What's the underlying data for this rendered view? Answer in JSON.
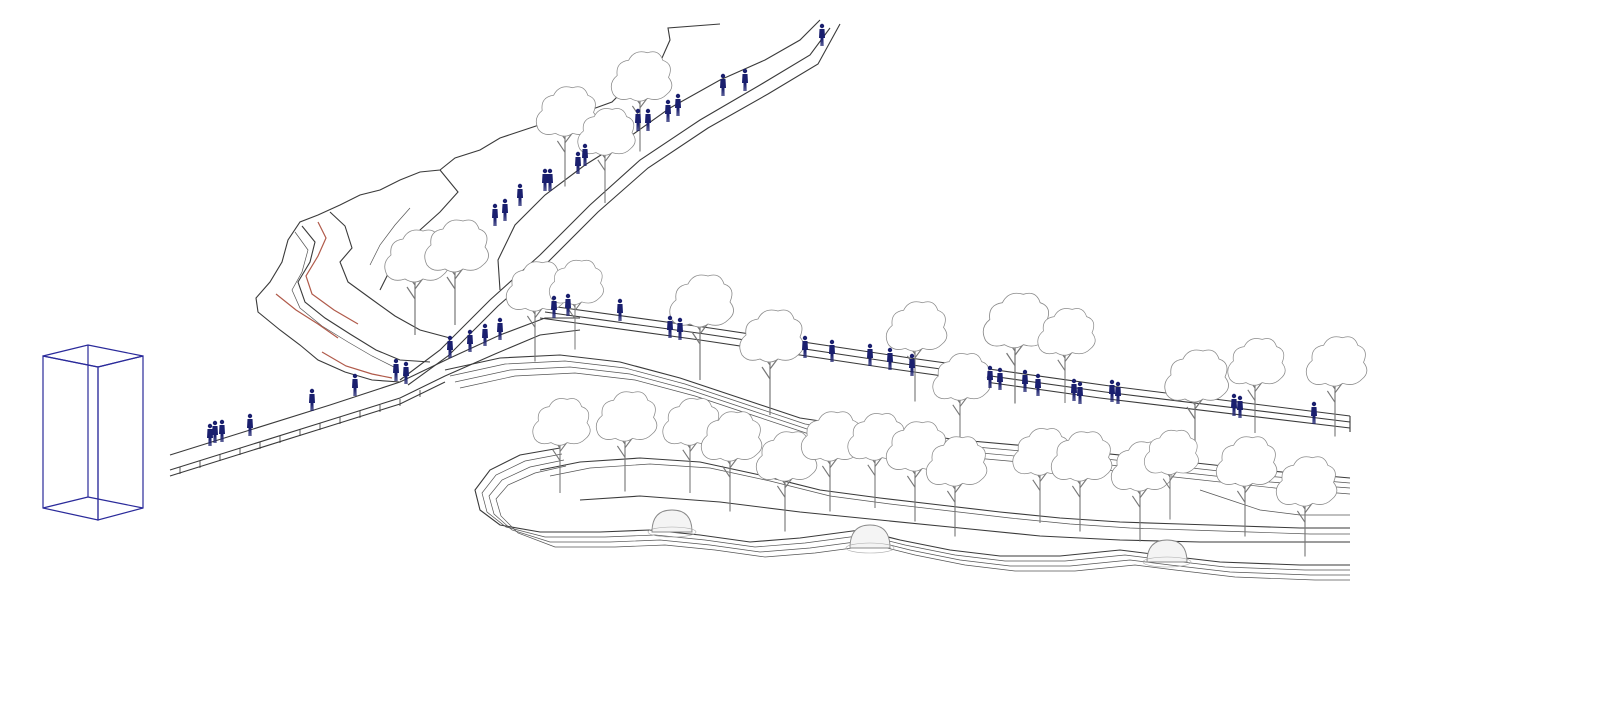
{
  "scene": {
    "description_label": "",
    "colors": {
      "linework": "#3a3a3a",
      "people": "#1a1f6e",
      "trees": "#8a8a8a",
      "accent_path": "#b05a4a",
      "reference_box": "#2a2a9a"
    },
    "icons": [
      "tree-icon",
      "person-icon",
      "dome-icon",
      "reference-box-icon"
    ]
  }
}
